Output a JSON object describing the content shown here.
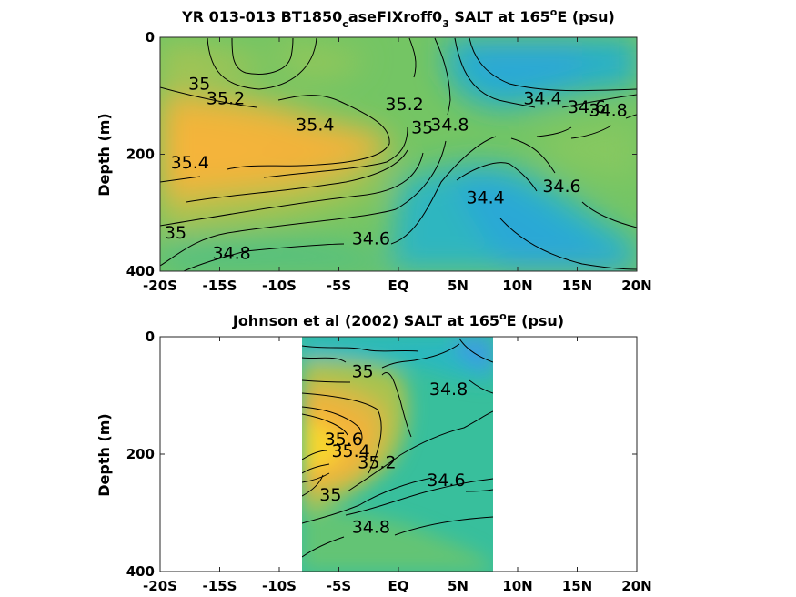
{
  "chart_data": [
    {
      "type": "contour",
      "title": {
        "pre": "YR 013-013 BT1850",
        "sub1": "c",
        "mid": "aseFIXroff0",
        "sub2": "3",
        "post1": " SALT at 165",
        "sup": "o",
        "post2": "E (psu)"
      },
      "ylabel": "Depth (m)",
      "xlabel": "",
      "xlim": [
        -20,
        20
      ],
      "ylim": [
        0,
        400
      ],
      "y_reversed": true,
      "xticks": [
        -20,
        -15,
        -10,
        -5,
        0,
        5,
        10,
        15,
        20
      ],
      "xtick_labels": [
        "-20S",
        "-15S",
        "-10S",
        "-5S",
        "EQ",
        "5N",
        "10N",
        "15N",
        "20N"
      ],
      "yticks": [
        0,
        200,
        400
      ],
      "ytick_labels": [
        "0",
        "200",
        "400"
      ],
      "colormap": [
        "#3ea0e6",
        "#25b3c4",
        "#3cbf9c",
        "#88c85f",
        "#d6ba43",
        "#f3b23b",
        "#f8d52f"
      ],
      "contour_labels": [
        {
          "text": "35",
          "x": -16.7,
          "y": 80
        },
        {
          "text": "35.2",
          "x": -14.5,
          "y": 105
        },
        {
          "text": "35.4",
          "x": -7.0,
          "y": 150
        },
        {
          "text": "35.2",
          "x": 0.5,
          "y": 115
        },
        {
          "text": "35",
          "x": 2.0,
          "y": 155
        },
        {
          "text": "34.8",
          "x": 4.3,
          "y": 150
        },
        {
          "text": "34.4",
          "x": 12.1,
          "y": 105
        },
        {
          "text": "34.6",
          "x": 15.8,
          "y": 120
        },
        {
          "text": "34.8",
          "x": 17.6,
          "y": 125
        },
        {
          "text": "35.4",
          "x": -17.5,
          "y": 215
        },
        {
          "text": "34.4",
          "x": 7.3,
          "y": 275
        },
        {
          "text": "34.6",
          "x": 13.7,
          "y": 255
        },
        {
          "text": "35",
          "x": -18.7,
          "y": 335
        },
        {
          "text": "34.8",
          "x": -14.0,
          "y": 370
        },
        {
          "text": "34.6",
          "x": -2.3,
          "y": 345
        }
      ]
    },
    {
      "type": "contour",
      "title": {
        "pre": "Johnson et al (2002) SALT at 165",
        "sup": "o",
        "post": "E (psu)"
      },
      "ylabel": "Depth (m)",
      "xlabel": "",
      "xlim": [
        -20,
        20
      ],
      "ylim": [
        0,
        400
      ],
      "y_reversed": true,
      "data_extent_x": [
        -8,
        8
      ],
      "xticks": [
        -20,
        -15,
        -10,
        -5,
        0,
        5,
        10,
        15,
        20
      ],
      "xtick_labels": [
        "-20S",
        "-15S",
        "-10S",
        "-5S",
        "EQ",
        "5N",
        "10N",
        "15N",
        "20N"
      ],
      "yticks": [
        0,
        200,
        400
      ],
      "ytick_labels": [
        "0",
        "200",
        "400"
      ],
      "colormap": [
        "#3ea0e6",
        "#25b3c4",
        "#3cbf9c",
        "#88c85f",
        "#d6ba43",
        "#f3b23b",
        "#f8d52f"
      ],
      "contour_labels": [
        {
          "text": "35",
          "x": -3.0,
          "y": 60
        },
        {
          "text": "34.8",
          "x": 4.2,
          "y": 90
        },
        {
          "text": "35.6",
          "x": -4.6,
          "y": 175
        },
        {
          "text": "35.4",
          "x": -4.0,
          "y": 195
        },
        {
          "text": "35.2",
          "x": -1.8,
          "y": 215
        },
        {
          "text": "34.6",
          "x": 4.0,
          "y": 245
        },
        {
          "text": "35",
          "x": -5.7,
          "y": 270
        },
        {
          "text": "34.8",
          "x": -2.3,
          "y": 325
        }
      ]
    }
  ]
}
